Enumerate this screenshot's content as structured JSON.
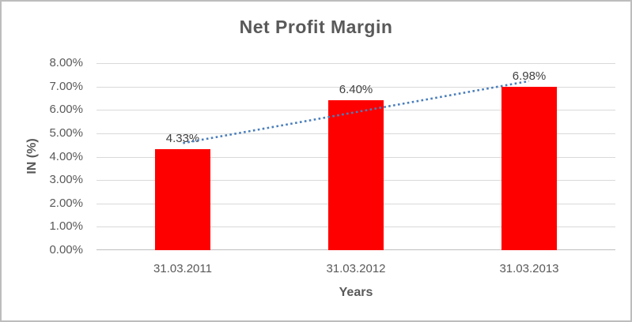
{
  "chart_data": {
    "type": "bar",
    "title": "Net Profit Margin",
    "xlabel": "Years",
    "ylabel": "IN (%)",
    "categories": [
      "31.03.2011",
      "31.03.2012",
      "31.03.2013"
    ],
    "values": [
      4.33,
      6.4,
      6.98
    ],
    "data_labels": [
      "4.33%",
      "6.40%",
      "6.98%"
    ],
    "ylim": [
      0,
      8
    ],
    "yticks": [
      "0.00%",
      "1.00%",
      "2.00%",
      "3.00%",
      "4.00%",
      "5.00%",
      "6.00%",
      "7.00%",
      "8.00%"
    ],
    "grid": "horizontal",
    "legend": "none",
    "bar_color": "#ff0000",
    "text_color": "#595959",
    "data_label_color": "#404040",
    "gridline_color": "#d9d9d9",
    "trendline": {
      "type": "linear",
      "style": "dotted",
      "color": "#4a7ebb",
      "start_value": 4.58,
      "end_value": 7.23
    }
  }
}
